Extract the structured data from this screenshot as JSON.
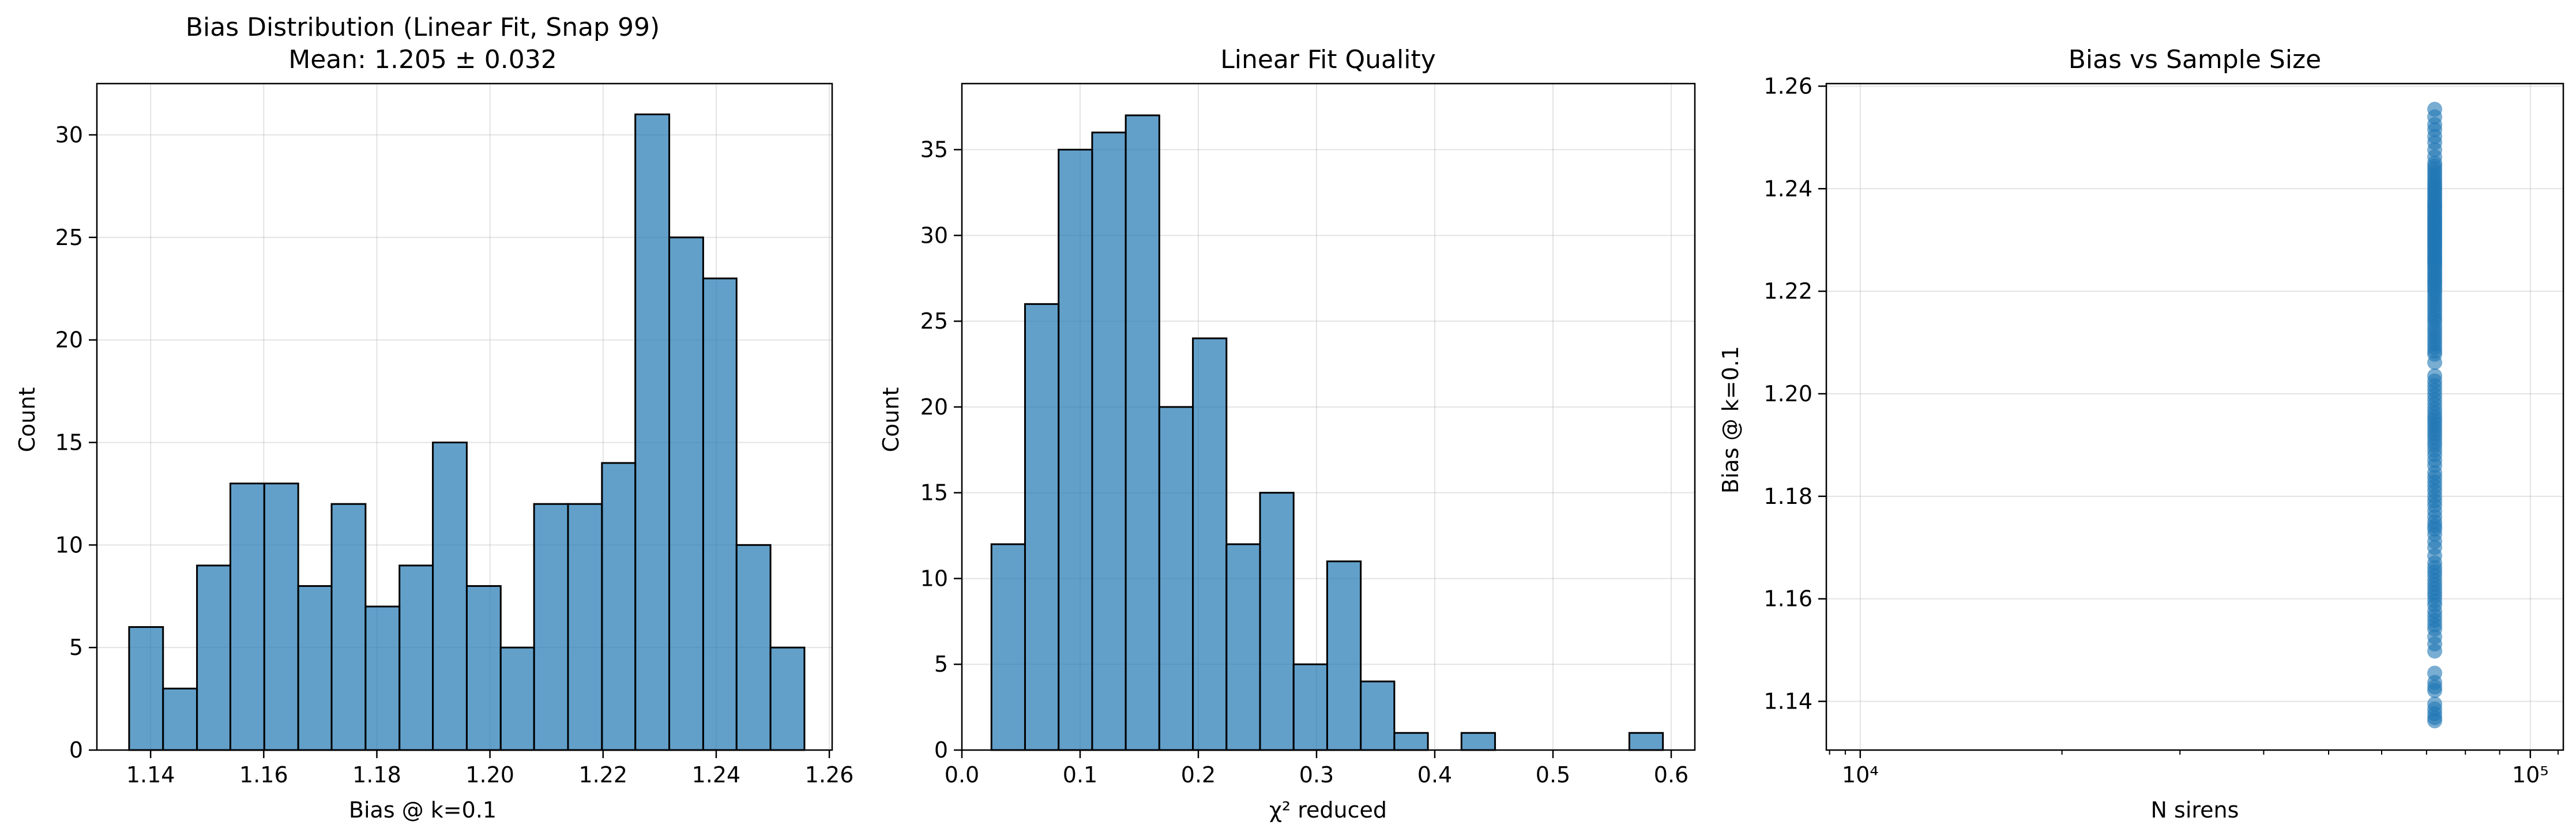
{
  "colors": {
    "bar_fill": "#1f77b4",
    "bar_edge": "#000000",
    "scatter": "#1f77b4",
    "grid": "#b0b0b0",
    "axis": "#000000"
  },
  "chart_data": [
    {
      "type": "bar",
      "title": "Bias Distribution (Linear Fit, Snap 99)",
      "subtitle": "Mean: 1.205 ± 0.032",
      "xlabel": "Bias @ k=0.1",
      "ylabel": "Count",
      "xlim": [
        1.1305,
        1.2605
      ],
      "ylim": [
        0,
        32.5
      ],
      "xticks": [
        1.14,
        1.16,
        1.18,
        1.2,
        1.22,
        1.24,
        1.26
      ],
      "xtick_labels": [
        "1.14",
        "1.16",
        "1.18",
        "1.20",
        "1.22",
        "1.24",
        "1.26"
      ],
      "yticks": [
        0,
        5,
        10,
        15,
        20,
        25,
        30
      ],
      "ytick_labels": [
        "0",
        "5",
        "10",
        "15",
        "20",
        "25",
        "30"
      ],
      "grid": true,
      "bin_edges": [
        1.1362,
        1.1422,
        1.1482,
        1.1541,
        1.1601,
        1.1661,
        1.172,
        1.178,
        1.184,
        1.1899,
        1.1959,
        1.2019,
        1.2078,
        1.2138,
        1.2198,
        1.2257,
        1.2317,
        1.2377,
        1.2436,
        1.2496,
        1.2556
      ],
      "values": [
        6,
        3,
        9,
        13,
        13,
        8,
        12,
        7,
        9,
        15,
        8,
        5,
        12,
        12,
        14,
        31,
        25,
        23,
        10,
        5
      ]
    },
    {
      "type": "bar",
      "title": "Linear Fit Quality",
      "xlabel": "χ² reduced",
      "ylabel": "Count",
      "xlim": [
        0.0,
        0.62
      ],
      "ylim": [
        0,
        38.85
      ],
      "xticks": [
        0.0,
        0.1,
        0.2,
        0.3,
        0.4,
        0.5,
        0.6
      ],
      "xtick_labels": [
        "0.0",
        "0.1",
        "0.2",
        "0.3",
        "0.4",
        "0.5",
        "0.6"
      ],
      "yticks": [
        0,
        5,
        10,
        15,
        20,
        25,
        30,
        35
      ],
      "ytick_labels": [
        "0",
        "5",
        "10",
        "15",
        "20",
        "25",
        "30",
        "35"
      ],
      "grid": true,
      "bin_edges": [
        0.025,
        0.0534,
        0.0818,
        0.1102,
        0.1386,
        0.167,
        0.1954,
        0.2238,
        0.2522,
        0.2806,
        0.309,
        0.3374,
        0.3658,
        0.3942,
        0.4226,
        0.451,
        0.4794,
        0.5078,
        0.5362,
        0.5646,
        0.593
      ],
      "values": [
        12,
        26,
        35,
        36,
        37,
        20,
        24,
        12,
        15,
        5,
        11,
        4,
        1,
        0,
        1,
        0,
        0,
        0,
        0,
        1
      ]
    },
    {
      "type": "scatter",
      "title": "Bias vs Sample Size",
      "xlabel": "N sirens",
      "ylabel": "Bias @ k=0.1",
      "xscale": "log",
      "xlim": [
        8900,
        112000
      ],
      "ylim": [
        1.1305,
        1.2605
      ],
      "xticks": [
        10000,
        100000
      ],
      "xtick_labels": [
        "10⁴",
        "10⁵"
      ],
      "yticks": [
        1.14,
        1.16,
        1.18,
        1.2,
        1.22,
        1.24,
        1.26
      ],
      "ytick_labels": [
        "1.14",
        "1.16",
        "1.18",
        "1.20",
        "1.22",
        "1.24",
        "1.26"
      ],
      "grid": true,
      "x_constant": 72000,
      "y": [
        1.1362,
        1.1368,
        1.1376,
        1.1385,
        1.1395,
        1.1421,
        1.1428,
        1.1437,
        1.1455,
        1.1498,
        1.1512,
        1.1526,
        1.1541,
        1.1549,
        1.1558,
        1.1567,
        1.1576,
        1.1588,
        1.1596,
        1.1605,
        1.1612,
        1.162,
        1.1628,
        1.1636,
        1.1645,
        1.1653,
        1.1661,
        1.167,
        1.1684,
        1.17,
        1.1712,
        1.1726,
        1.1736,
        1.1742,
        1.175,
        1.176,
        1.1771,
        1.1782,
        1.1791,
        1.18,
        1.181,
        1.1819,
        1.1828,
        1.1837,
        1.1846,
        1.186,
        1.187,
        1.1881,
        1.189,
        1.1899,
        1.1906,
        1.1914,
        1.1921,
        1.1928,
        1.1935,
        1.1942,
        1.1949,
        1.1955,
        1.1963,
        1.1971,
        1.198,
        1.1989,
        1.1998,
        1.2007,
        1.2016,
        1.2025,
        1.2035,
        1.2061,
        1.2077,
        1.2083,
        1.209,
        1.2097,
        1.2104,
        1.2111,
        1.2118,
        1.2125,
        1.2132,
        1.214,
        1.2146,
        1.2152,
        1.2159,
        1.2165,
        1.2172,
        1.2178,
        1.2185,
        1.2191,
        1.2198,
        1.2203,
        1.2208,
        1.2213,
        1.2218,
        1.2222,
        1.2227,
        1.2232,
        1.2237,
        1.2242,
        1.2247,
        1.2252,
        1.2256,
        1.226,
        1.2264,
        1.2268,
        1.2272,
        1.2276,
        1.2281,
        1.2285,
        1.2289,
        1.2293,
        1.2297,
        1.2301,
        1.2305,
        1.2309,
        1.2313,
        1.2317,
        1.2321,
        1.2325,
        1.2329,
        1.2333,
        1.2337,
        1.2341,
        1.2345,
        1.2349,
        1.2353,
        1.2358,
        1.2362,
        1.2366,
        1.237,
        1.2374,
        1.2379,
        1.2384,
        1.2389,
        1.2394,
        1.2399,
        1.2404,
        1.2409,
        1.2414,
        1.242,
        1.2426,
        1.2432,
        1.2438,
        1.2444,
        1.245,
        1.2462,
        1.2476,
        1.249,
        1.2502,
        1.2515,
        1.2525,
        1.254,
        1.2555
      ]
    }
  ]
}
